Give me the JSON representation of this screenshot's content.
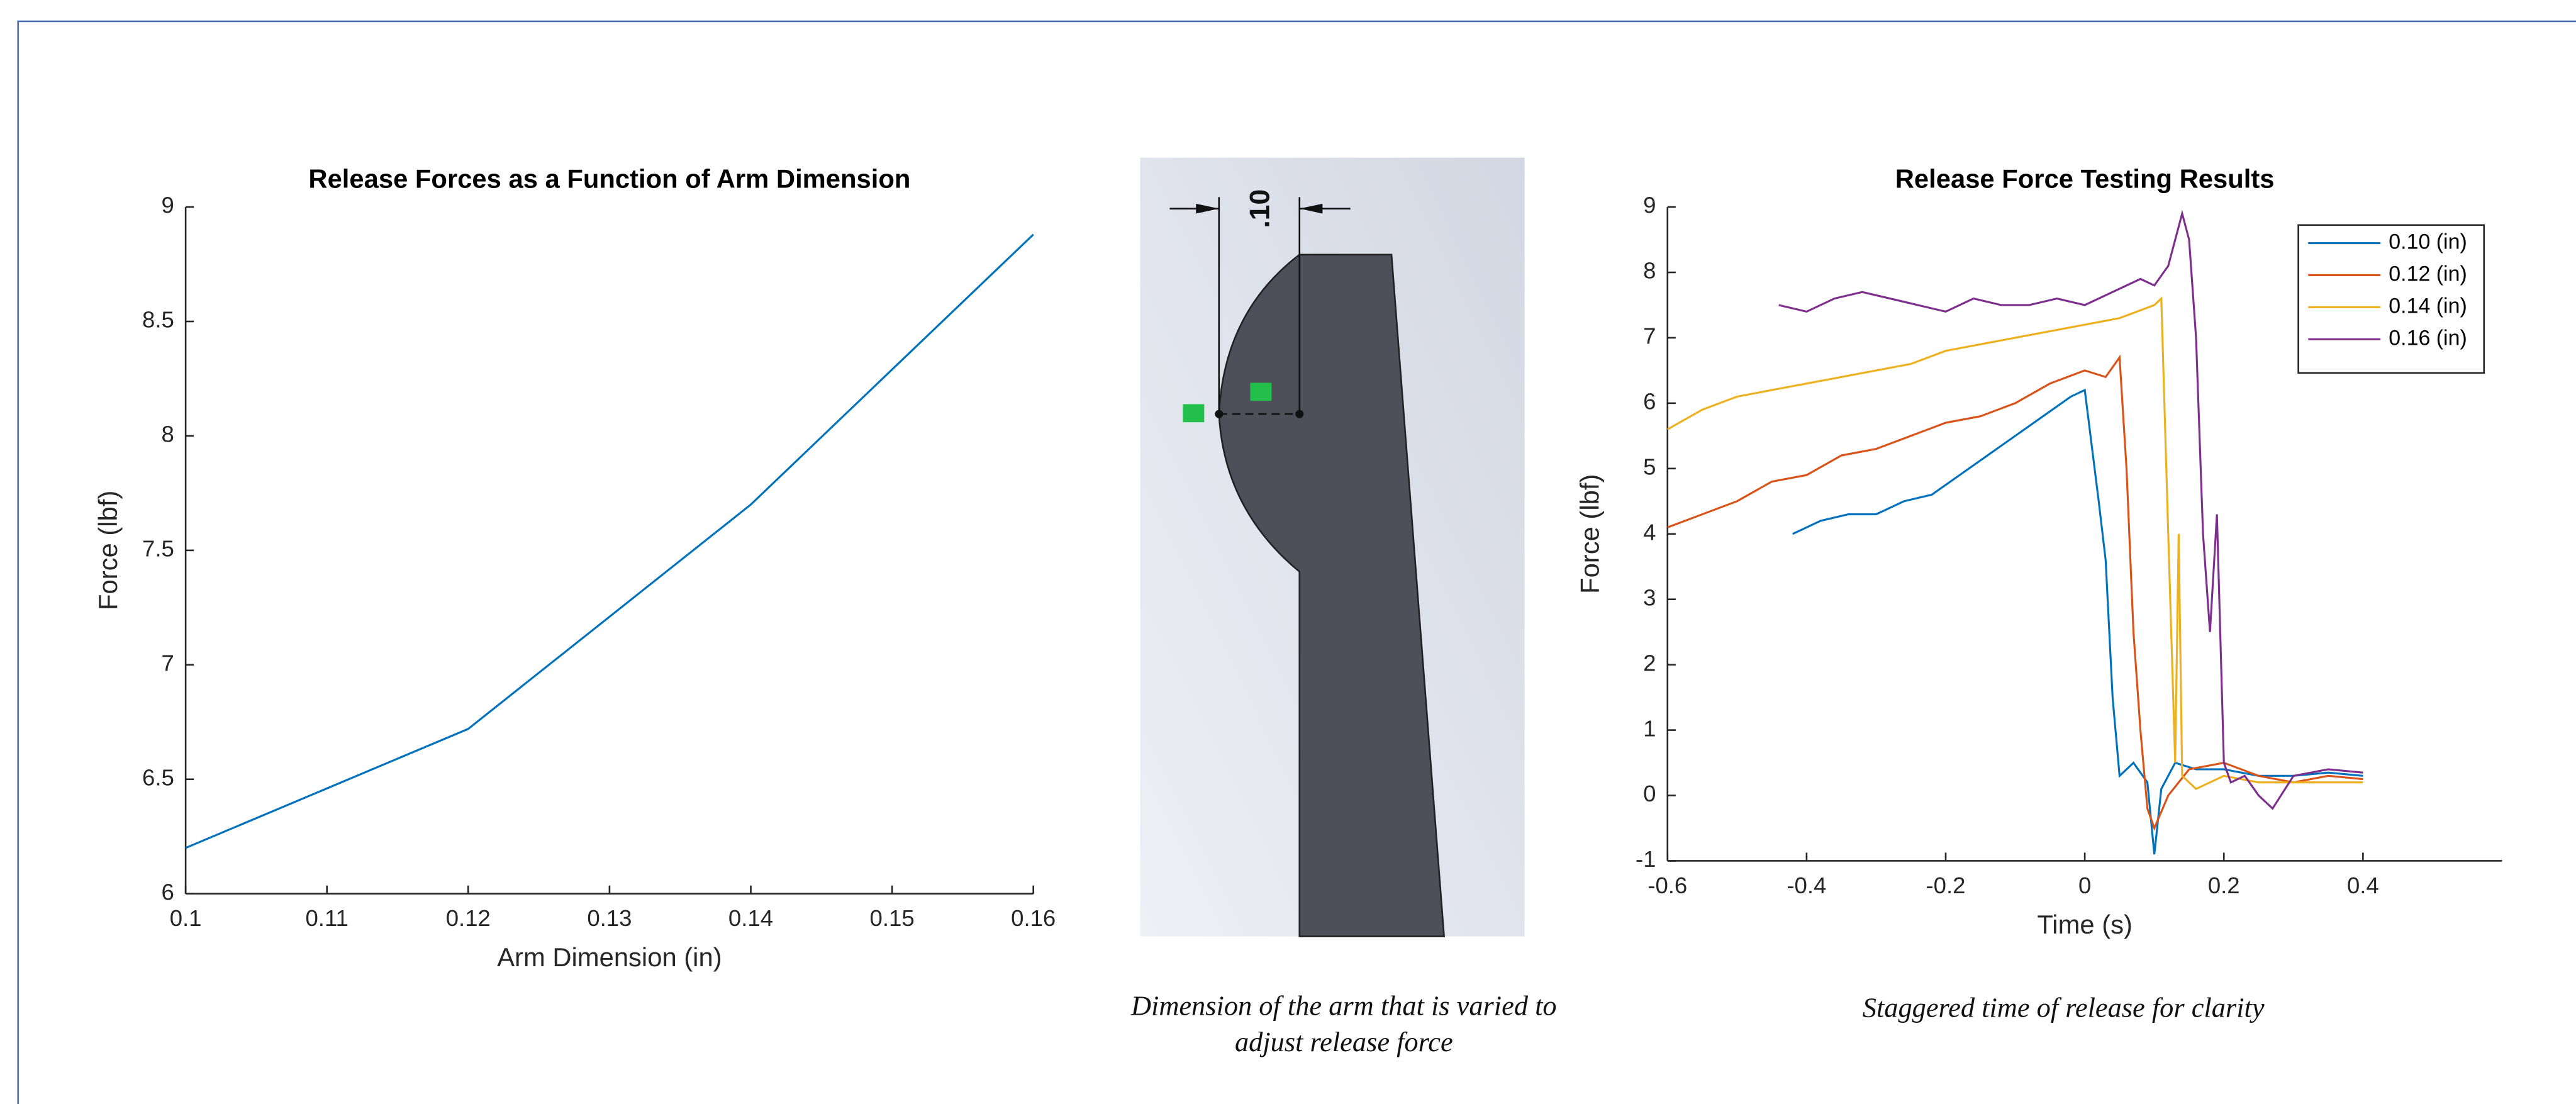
{
  "chart_data": [
    {
      "type": "line",
      "title": "Release Forces as a Function of Arm Dimension",
      "xlabel": "Arm Dimension (in)",
      "ylabel": "Force (lbf)",
      "x": [
        0.1,
        0.12,
        0.14,
        0.16
      ],
      "values": [
        6.2,
        6.72,
        7.7,
        8.88
      ],
      "color": "#0072bd",
      "xlim": [
        0.1,
        0.16
      ],
      "xticks": [
        0.1,
        0.11,
        0.12,
        0.13,
        0.14,
        0.15,
        0.16
      ],
      "ylim": [
        6,
        9
      ],
      "yticks": [
        6,
        6.5,
        7,
        7.5,
        8,
        8.5,
        9
      ],
      "grid": false
    },
    {
      "type": "line",
      "title": "Release Force Testing Results",
      "xlabel": "Time (s)",
      "ylabel": "Force (lbf)",
      "xlim": [
        -0.6,
        0.6
      ],
      "xticks": [
        -0.6,
        -0.4,
        -0.2,
        0,
        0.2,
        0.4
      ],
      "ylim": [
        -1,
        9
      ],
      "yticks": [
        -1,
        0,
        1,
        2,
        3,
        4,
        5,
        6,
        7,
        8,
        9
      ],
      "grid": false,
      "legend": "upper right",
      "series": [
        {
          "name": "0.10 (in)",
          "color": "#0072bd",
          "x": [
            -0.42,
            -0.38,
            -0.34,
            -0.3,
            -0.26,
            -0.22,
            -0.18,
            -0.14,
            -0.1,
            -0.06,
            -0.02,
            0,
            0.02,
            0.03,
            0.04,
            0.05,
            0.07,
            0.09,
            0.1,
            0.11,
            0.13,
            0.16,
            0.2,
            0.25,
            0.3,
            0.35,
            0.4
          ],
          "values": [
            4.0,
            4.2,
            4.3,
            4.3,
            4.5,
            4.6,
            4.9,
            5.2,
            5.5,
            5.8,
            6.1,
            6.2,
            4.5,
            3.6,
            1.5,
            0.3,
            0.5,
            0.2,
            -0.9,
            0.1,
            0.5,
            0.4,
            0.4,
            0.3,
            0.3,
            0.35,
            0.3
          ]
        },
        {
          "name": "0.12 (in)",
          "color": "#d95319",
          "x": [
            -0.6,
            -0.55,
            -0.5,
            -0.45,
            -0.4,
            -0.35,
            -0.3,
            -0.25,
            -0.2,
            -0.15,
            -0.1,
            -0.05,
            0,
            0.03,
            0.05,
            0.06,
            0.07,
            0.08,
            0.09,
            0.1,
            0.12,
            0.15,
            0.2,
            0.25,
            0.3,
            0.35,
            0.4
          ],
          "values": [
            4.1,
            4.3,
            4.5,
            4.8,
            4.9,
            5.2,
            5.3,
            5.5,
            5.7,
            5.8,
            6.0,
            6.3,
            6.5,
            6.4,
            6.7,
            5.0,
            2.5,
            1.0,
            -0.2,
            -0.5,
            0.0,
            0.4,
            0.5,
            0.3,
            0.2,
            0.3,
            0.25
          ]
        },
        {
          "name": "0.14 (in)",
          "color": "#edb120",
          "x": [
            -0.6,
            -0.55,
            -0.5,
            -0.45,
            -0.4,
            -0.35,
            -0.3,
            -0.25,
            -0.2,
            -0.15,
            -0.1,
            -0.05,
            0,
            0.05,
            0.1,
            0.11,
            0.12,
            0.13,
            0.135,
            0.14,
            0.16,
            0.2,
            0.25,
            0.3,
            0.35,
            0.4
          ],
          "values": [
            5.6,
            5.9,
            6.1,
            6.2,
            6.3,
            6.4,
            6.5,
            6.6,
            6.8,
            6.9,
            7.0,
            7.1,
            7.2,
            7.3,
            7.5,
            7.6,
            4.0,
            0.5,
            4.0,
            0.3,
            0.1,
            0.3,
            0.2,
            0.2,
            0.2,
            0.2
          ]
        },
        {
          "name": "0.16 (in)",
          "color": "#7e2f8e",
          "x": [
            -0.44,
            -0.4,
            -0.36,
            -0.32,
            -0.28,
            -0.24,
            -0.2,
            -0.16,
            -0.12,
            -0.08,
            -0.04,
            0,
            0.04,
            0.08,
            0.1,
            0.12,
            0.14,
            0.15,
            0.16,
            0.17,
            0.18,
            0.19,
            0.2,
            0.21,
            0.23,
            0.25,
            0.27,
            0.3,
            0.35,
            0.4
          ],
          "values": [
            7.5,
            7.4,
            7.6,
            7.7,
            7.6,
            7.5,
            7.4,
            7.6,
            7.5,
            7.5,
            7.6,
            7.5,
            7.7,
            7.9,
            7.8,
            8.1,
            8.9,
            8.5,
            7.0,
            4.0,
            2.5,
            4.3,
            0.5,
            0.2,
            0.3,
            0.0,
            -0.2,
            0.3,
            0.4,
            0.35
          ]
        }
      ]
    }
  ],
  "diagram": {
    "dimension_label": ".10"
  },
  "captions": {
    "diagram": "Dimension of the arm that is varied to\nadjust release force",
    "chart": "Staggered time of release for clarity"
  }
}
